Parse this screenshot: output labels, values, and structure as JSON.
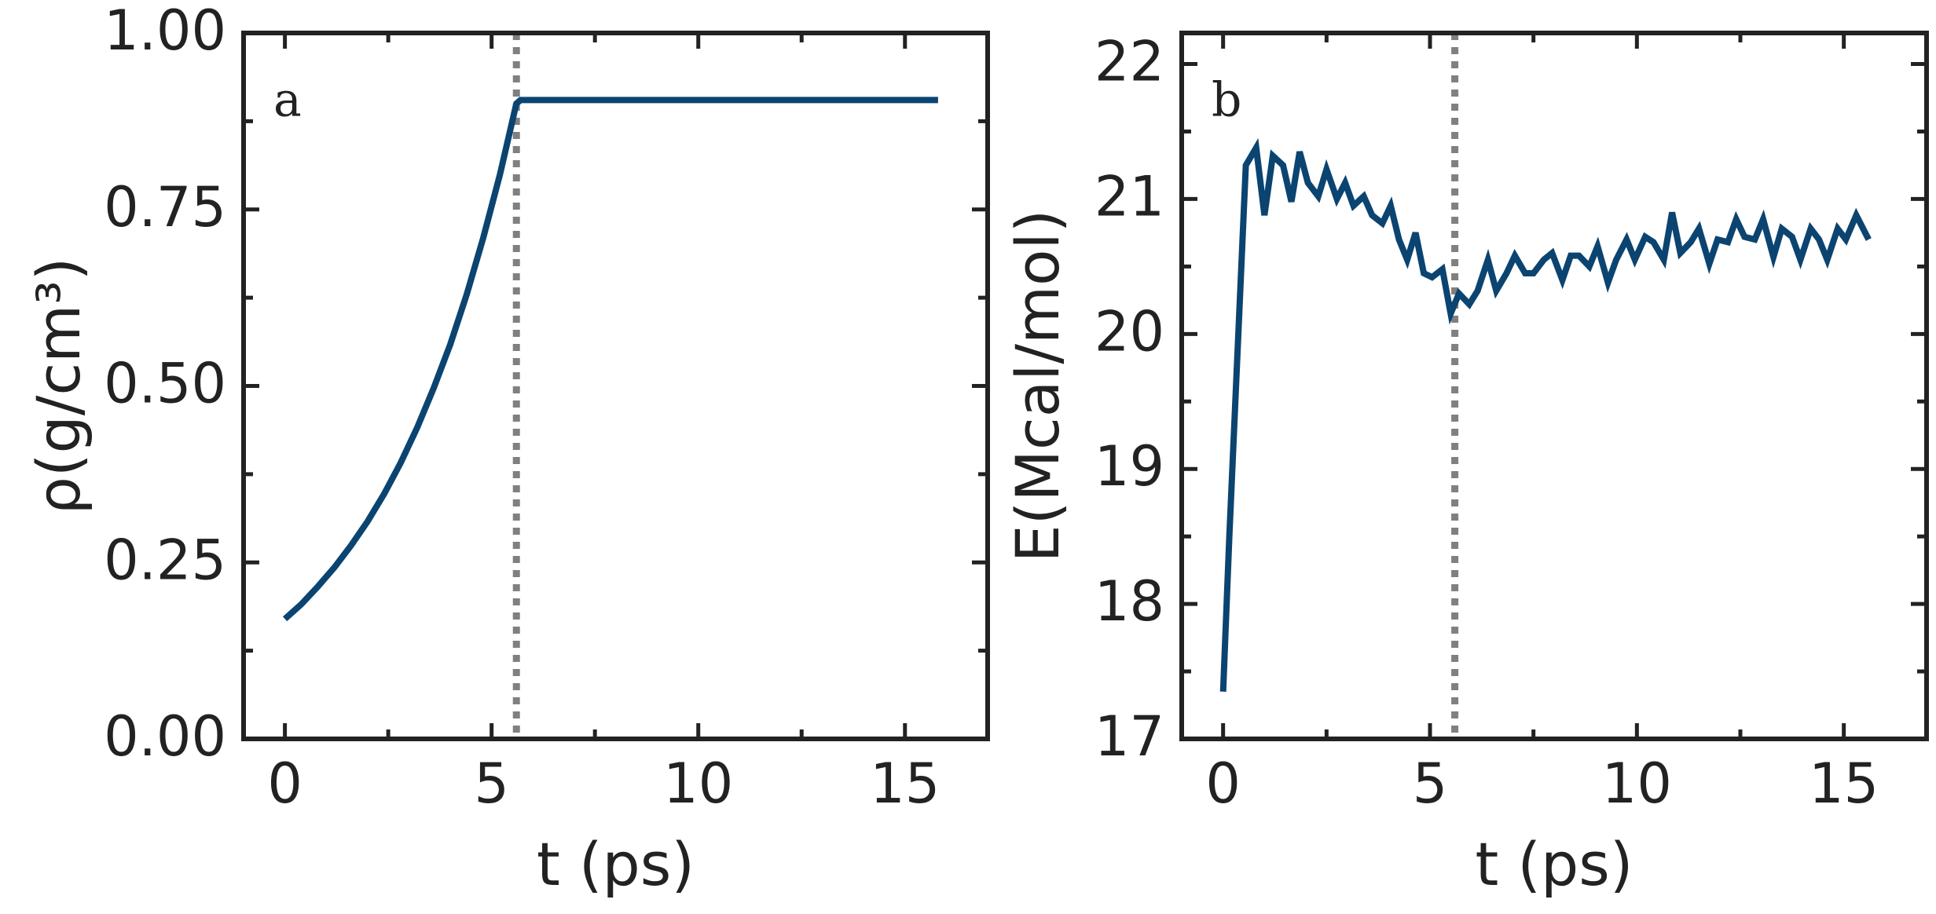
{
  "chart_data": [
    {
      "type": "line",
      "annotation": "a",
      "xlabel": "t (ps)",
      "ylabel": "ρ(g/cm³)",
      "xlim": [
        -1,
        17
      ],
      "xticks": [
        0,
        5,
        10,
        15
      ],
      "xminorticks": [
        2.5,
        7.5,
        12.5
      ],
      "ylim": [
        0,
        1
      ],
      "yticks": [
        {
          "value": 0,
          "label": "0.00"
        },
        0.25,
        {
          "value": 0.5,
          "label": "0.50"
        },
        0.75,
        {
          "value": 1,
          "label": "1.00"
        }
      ],
      "yminorticks": [
        0.125,
        0.375,
        0.625,
        0.875
      ],
      "vline": 5.6,
      "series": [
        {
          "color": "#0b4470",
          "x": [
            0,
            0.4,
            0.8,
            1.2,
            1.6,
            2.0,
            2.4,
            2.8,
            3.2,
            3.6,
            4.0,
            4.4,
            4.8,
            5.2,
            5.6,
            5.7,
            15.8
          ],
          "values": [
            0.17,
            0.191,
            0.216,
            0.243,
            0.274,
            0.308,
            0.347,
            0.391,
            0.441,
            0.497,
            0.559,
            0.63,
            0.71,
            0.799,
            0.9,
            0.905,
            0.905
          ]
        }
      ]
    },
    {
      "type": "line",
      "annotation": "b",
      "xlabel": "t (ps)",
      "ylabel": "E(Mcal/mol)",
      "xlim": [
        -1,
        17
      ],
      "xticks": [
        0,
        5,
        10,
        15
      ],
      "xminorticks": [
        2.5,
        7.5,
        12.5
      ],
      "ylim": [
        17,
        22.23
      ],
      "yticks": [
        17,
        18,
        19,
        20,
        21,
        22
      ],
      "yminorticks": [
        17.5,
        18.5,
        19.5,
        20.5,
        21.5
      ],
      "vline": 5.6,
      "series": [
        {
          "color": "#0b4470",
          "x": [
            0,
            0.15,
            0.55,
            0.8,
            1.0,
            1.2,
            1.45,
            1.65,
            1.85,
            2.05,
            2.3,
            2.5,
            2.75,
            2.95,
            3.15,
            3.4,
            3.6,
            3.85,
            4.05,
            4.25,
            4.45,
            4.65,
            4.85,
            5.05,
            5.3,
            5.5,
            5.7,
            5.95,
            6.15,
            6.4,
            6.6,
            6.85,
            7.05,
            7.3,
            7.5,
            7.75,
            7.95,
            8.2,
            8.4,
            8.6,
            8.85,
            9.05,
            9.3,
            9.5,
            9.75,
            9.95,
            10.2,
            10.4,
            10.65,
            10.85,
            11.05,
            11.3,
            11.5,
            11.75,
            11.95,
            12.2,
            12.4,
            12.6,
            12.85,
            13.05,
            13.3,
            13.5,
            13.75,
            13.95,
            14.2,
            14.4,
            14.6,
            14.85,
            15.05,
            15.3,
            15.6
          ],
          "values": [
            17.35,
            18.5,
            21.25,
            21.38,
            20.88,
            21.32,
            21.25,
            20.98,
            21.35,
            21.12,
            21.02,
            21.22,
            21.0,
            21.12,
            20.95,
            21.02,
            20.88,
            20.82,
            20.95,
            20.7,
            20.55,
            20.75,
            20.45,
            20.42,
            20.48,
            20.15,
            20.3,
            20.22,
            20.32,
            20.55,
            20.32,
            20.45,
            20.58,
            20.45,
            20.45,
            20.55,
            20.6,
            20.4,
            20.58,
            20.58,
            20.5,
            20.65,
            20.38,
            20.55,
            20.7,
            20.55,
            20.72,
            20.68,
            20.55,
            20.9,
            20.6,
            20.68,
            20.78,
            20.52,
            20.7,
            20.68,
            20.85,
            20.72,
            20.7,
            20.85,
            20.57,
            20.78,
            20.72,
            20.55,
            20.78,
            20.7,
            20.55,
            20.78,
            20.7,
            20.88,
            20.7
          ]
        }
      ]
    }
  ]
}
